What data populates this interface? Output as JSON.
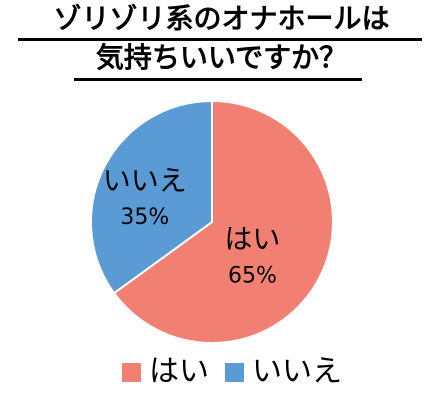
{
  "chart_data": {
    "type": "pie",
    "title_lines": [
      "ゾリゾリ系のオナホールは",
      "気持ちいいですか？"
    ],
    "categories": [
      "はい",
      "いいえ"
    ],
    "values": [
      65,
      35
    ],
    "value_labels": [
      "65%",
      "35%"
    ],
    "colors": [
      "#f28072",
      "#5b9bd5"
    ],
    "legend_position": "bottom",
    "start_angle_deg": 0,
    "direction": "clockwise"
  },
  "legend": {
    "items": [
      {
        "label": "はい",
        "color": "#f28072"
      },
      {
        "label": "いいえ",
        "color": "#5b9bd5"
      }
    ]
  }
}
